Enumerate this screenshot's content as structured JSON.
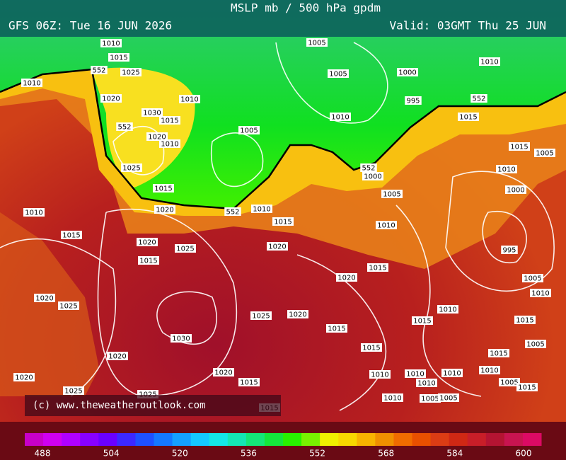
{
  "header": {
    "title": "MSLP mb / 500 hPa gpdm",
    "run": "GFS 06Z: Tue 16 JUN 2026",
    "valid": "Valid: 03GMT Thu 25 JUN"
  },
  "copyright": "(c) www.theweatheroutlook.com",
  "isobar_labels": [
    1010,
    1015,
    552,
    1025,
    1010,
    1020,
    1030,
    1015,
    1010,
    552,
    1020,
    1010,
    1025,
    1015,
    1020,
    552,
    1010,
    1015,
    1005,
    1005,
    1000,
    995,
    1010,
    1005,
    1010,
    552,
    1015,
    1015,
    1005,
    1010,
    552,
    1000,
    1005,
    1000,
    1010,
    995,
    1015,
    1020,
    1025,
    1020,
    1015,
    1015,
    1010,
    1020,
    1005,
    1010,
    1010,
    1025,
    1020,
    1030,
    1015,
    1015,
    1015,
    1015,
    1015,
    1005,
    1020,
    1025,
    1020,
    1020,
    1015,
    1020,
    1025,
    1025,
    1010,
    1010,
    1010,
    1010,
    1010,
    1005,
    1005,
    1010,
    1005,
    1015,
    1015
  ],
  "colorbar_labels": [
    488,
    504,
    520,
    536,
    552,
    568,
    584,
    600
  ]
}
